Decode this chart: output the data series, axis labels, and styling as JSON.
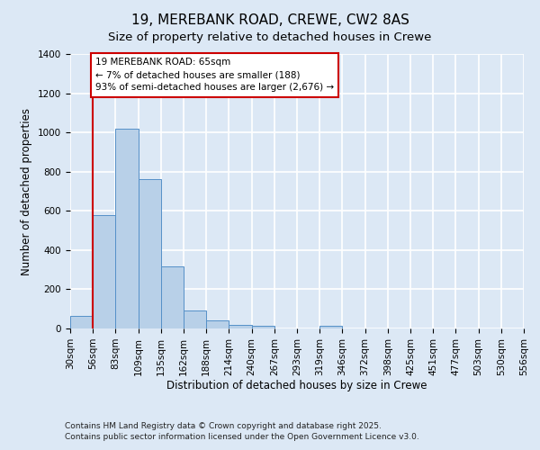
{
  "title_line1": "19, MEREBANK ROAD, CREWE, CW2 8AS",
  "title_line2": "Size of property relative to detached houses in Crewe",
  "xlabel": "Distribution of detached houses by size in Crewe",
  "ylabel": "Number of detached properties",
  "bar_labels": [
    "30sqm",
    "56sqm",
    "83sqm",
    "109sqm",
    "135sqm",
    "162sqm",
    "188sqm",
    "214sqm",
    "240sqm",
    "267sqm",
    "293sqm",
    "319sqm",
    "346sqm",
    "372sqm",
    "398sqm",
    "425sqm",
    "451sqm",
    "477sqm",
    "503sqm",
    "530sqm",
    "556sqm"
  ],
  "bar_heights": [
    65,
    580,
    1020,
    760,
    315,
    90,
    40,
    20,
    15,
    0,
    0,
    15,
    0,
    0,
    0,
    0,
    0,
    0,
    0,
    0
  ],
  "bar_color": "#b8d0e8",
  "bar_edge_color": "#5590c8",
  "background_color": "#dce8f5",
  "grid_color": "#ffffff",
  "vline_x": 1,
  "vline_color": "#cc0000",
  "annotation_text": "19 MEREBANK ROAD: 65sqm\n← 7% of detached houses are smaller (188)\n93% of semi-detached houses are larger (2,676) →",
  "annotation_box_facecolor": "#ffffff",
  "annotation_box_edgecolor": "#cc0000",
  "ylim": [
    0,
    1400
  ],
  "yticks": [
    0,
    200,
    400,
    600,
    800,
    1000,
    1200,
    1400
  ],
  "footer_line1": "Contains HM Land Registry data © Crown copyright and database right 2025.",
  "footer_line2": "Contains public sector information licensed under the Open Government Licence v3.0.",
  "title_fontsize": 11,
  "subtitle_fontsize": 9.5,
  "axis_label_fontsize": 8.5,
  "tick_fontsize": 7.5,
  "annotation_fontsize": 7.5,
  "footer_fontsize": 6.5
}
